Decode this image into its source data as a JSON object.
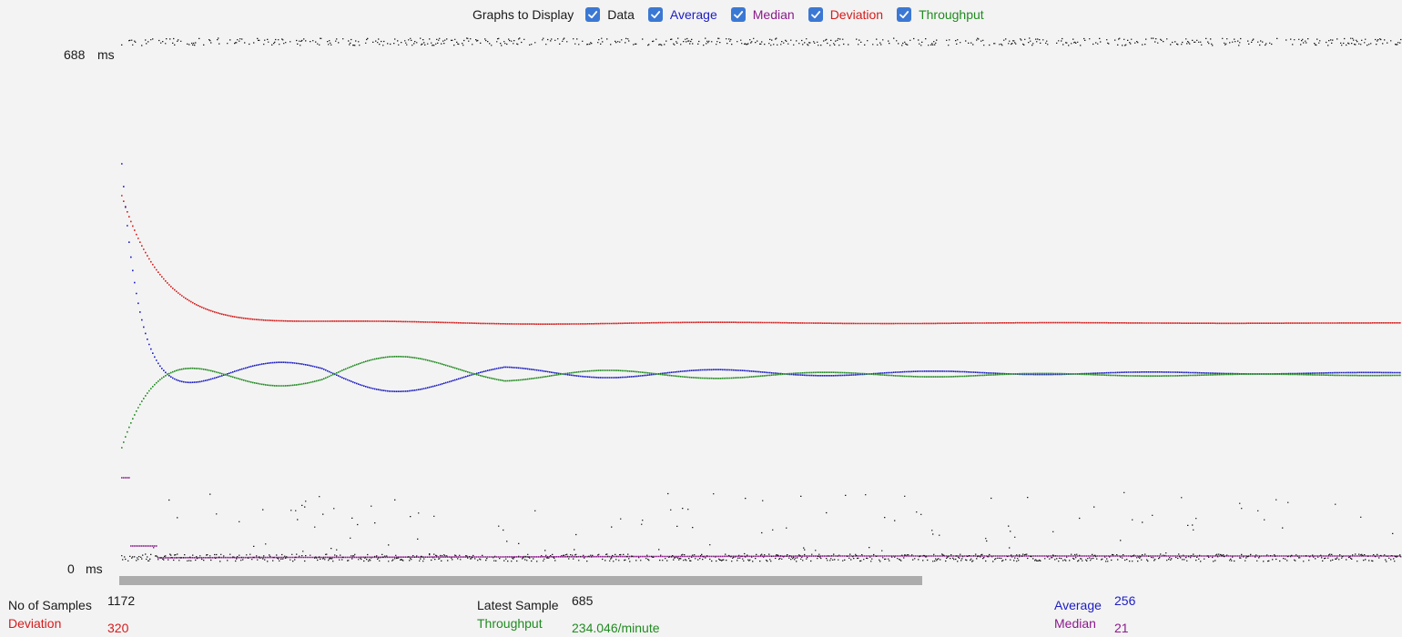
{
  "legend": {
    "title": "Graphs to Display",
    "items": [
      {
        "label": "Data",
        "color": "#1a1a1a",
        "checked": true
      },
      {
        "label": "Average",
        "color": "#1d1dc4",
        "checked": true
      },
      {
        "label": "Median",
        "color": "#8b1a8b",
        "checked": true
      },
      {
        "label": "Deviation",
        "color": "#d41c1c",
        "checked": true
      },
      {
        "label": "Throughput",
        "color": "#218b21",
        "checked": true
      }
    ]
  },
  "axis": {
    "max_value": "688",
    "min_value": "0",
    "unit": "ms"
  },
  "stats": {
    "samples_label": "No of Samples",
    "samples_value": "1172",
    "deviation_label": "Deviation",
    "deviation_value": "320",
    "latest_label": "Latest Sample",
    "latest_value": "685",
    "throughput_label": "Throughput",
    "throughput_value": "234.046/minute",
    "average_label": "Average",
    "average_value": "256",
    "median_label": "Median",
    "median_value": "21"
  },
  "colors": {
    "data": "#1a1a1a",
    "average": "#1d1dc4",
    "median": "#8b1a8b",
    "deviation": "#d41c1c",
    "throughput": "#218b21",
    "checkbox": "#3b78d4",
    "scrollbar": "#acacac"
  },
  "chart_data": {
    "type": "scatter",
    "y_unit": "ms",
    "ylim": [
      0,
      688
    ],
    "x": "sample index (1–1172)",
    "series": [
      {
        "name": "Average",
        "final_value": 256
      },
      {
        "name": "Median",
        "final_value": 21
      },
      {
        "name": "Deviation",
        "final_value": 320
      },
      {
        "name": "Throughput",
        "final_value": "234.046/minute"
      }
    ]
  }
}
